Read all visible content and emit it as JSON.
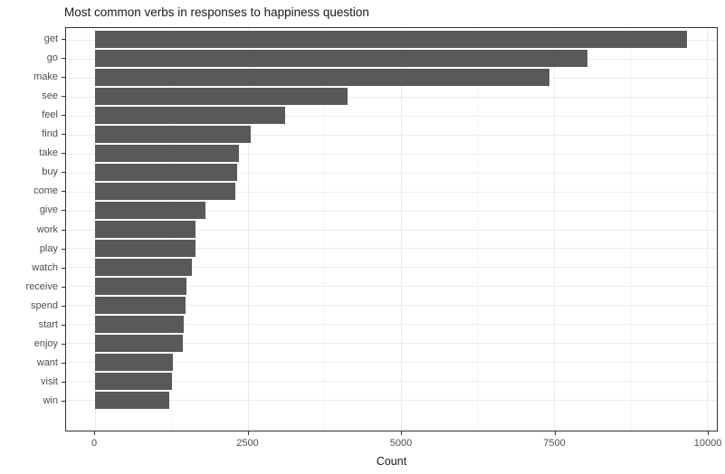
{
  "chart_data": {
    "type": "bar",
    "orientation": "horizontal",
    "title": "Most common verbs in responses to happiness question",
    "xlabel": "Count",
    "ylabel": "",
    "categories": [
      "get",
      "go",
      "make",
      "see",
      "feel",
      "find",
      "take",
      "buy",
      "come",
      "give",
      "work",
      "play",
      "watch",
      "receive",
      "spend",
      "start",
      "enjoy",
      "want",
      "visit",
      "win"
    ],
    "values": [
      9670,
      8050,
      7430,
      4130,
      3110,
      2540,
      2350,
      2320,
      2300,
      1810,
      1650,
      1640,
      1590,
      1500,
      1480,
      1450,
      1430,
      1270,
      1260,
      1210
    ],
    "x_ticks": [
      0,
      2500,
      5000,
      7500,
      10000
    ],
    "x_tick_labels": [
      "0",
      "2500",
      "5000",
      "7500",
      "10000"
    ],
    "x_minor_ticks": [
      1250,
      3750,
      6250,
      8750
    ],
    "xlim": [
      -472,
      10162
    ],
    "grid": true,
    "legend": false,
    "bar_fraction": 0.9,
    "category_expansion": 0.6,
    "colors": {
      "bar": "#595959",
      "panel_border": "#333333",
      "grid_major": "#ebebeb",
      "grid_minor": "#f5f5f5",
      "axis_text": "#4d4d4d",
      "title_text": "#1a1a1a",
      "tick_mark": "#333333",
      "background": "#ffffff"
    }
  }
}
